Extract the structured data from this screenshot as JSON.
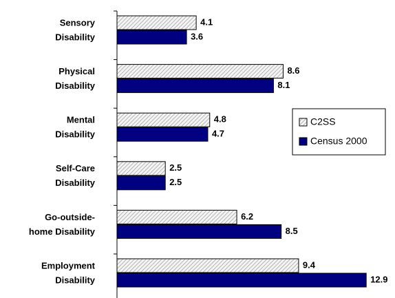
{
  "chart_data": {
    "type": "hbar",
    "categories": [
      [
        "Sensory",
        "Disability"
      ],
      [
        "Physical",
        "Disability"
      ],
      [
        "Mental",
        "Disability"
      ],
      [
        "Self-Care",
        "Disability"
      ],
      [
        "Go-outside-",
        "home Disability"
      ],
      [
        "Employment",
        "Disability"
      ]
    ],
    "series": [
      {
        "name": "C2SS",
        "color": "#a0a0a0",
        "hatch": true,
        "values": [
          4.1,
          8.6,
          4.8,
          2.5,
          6.2,
          9.4
        ]
      },
      {
        "name": "Census 2000",
        "color": "#000080",
        "hatch": false,
        "values": [
          3.6,
          8.1,
          4.7,
          2.5,
          8.5,
          12.9
        ]
      }
    ],
    "xlim": [
      0,
      13
    ],
    "legend": "right"
  }
}
